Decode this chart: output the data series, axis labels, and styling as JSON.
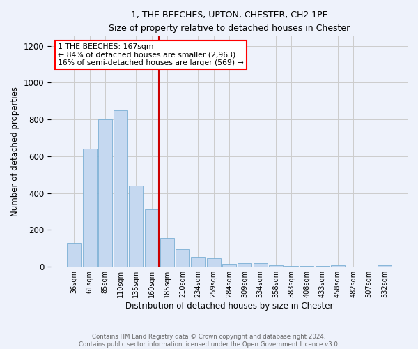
{
  "title": "1, THE BEECHES, UPTON, CHESTER, CH2 1PE",
  "subtitle": "Size of property relative to detached houses in Chester",
  "xlabel": "Distribution of detached houses by size in Chester",
  "ylabel": "Number of detached properties",
  "bar_labels": [
    "36sqm",
    "61sqm",
    "85sqm",
    "110sqm",
    "135sqm",
    "160sqm",
    "185sqm",
    "210sqm",
    "234sqm",
    "259sqm",
    "284sqm",
    "309sqm",
    "334sqm",
    "358sqm",
    "383sqm",
    "408sqm",
    "433sqm",
    "458sqm",
    "482sqm",
    "507sqm",
    "532sqm"
  ],
  "bar_values": [
    130,
    640,
    800,
    850,
    440,
    310,
    155,
    95,
    55,
    45,
    15,
    20,
    20,
    8,
    5,
    5,
    5,
    10,
    0,
    0,
    10
  ],
  "bar_color": "#c5d8f0",
  "bar_edge_color": "#7aafd4",
  "ylim": [
    0,
    1250
  ],
  "yticks": [
    0,
    200,
    400,
    600,
    800,
    1000,
    1200
  ],
  "property_line_label": "1 THE BEECHES: 167sqm",
  "annotation_line1": "← 84% of detached houses are smaller (2,963)",
  "annotation_line2": "16% of semi-detached houses are larger (569) →",
  "annotation_box_color": "white",
  "annotation_box_edge_color": "red",
  "vline_color": "#cc0000",
  "footer_line1": "Contains HM Land Registry data © Crown copyright and database right 2024.",
  "footer_line2": "Contains public sector information licensed under the Open Government Licence v3.0.",
  "background_color": "#eef2fb",
  "grid_color": "#cccccc"
}
